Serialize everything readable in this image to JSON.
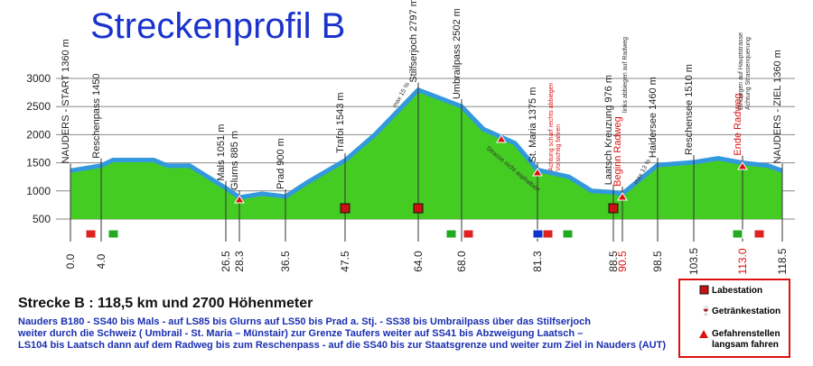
{
  "chart_data": {
    "type": "area",
    "title": "Streckenprofil B",
    "categories": [
      "0.0",
      "4.0",
      null,
      null,
      null,
      null,
      "26.5",
      "28.3",
      null,
      "36.5",
      null,
      "47.5",
      null,
      "64.0",
      "68.0",
      null,
      null,
      "81.3",
      null,
      null,
      "88.5",
      "90.5",
      "98.5",
      "103.5",
      null,
      "113.0",
      null,
      "118.5"
    ],
    "values": [
      1360,
      1450,
      1550,
      1550,
      1450,
      1450,
      1051,
      885,
      950,
      900,
      1150,
      1543,
      2000,
      2797,
      2502,
      2100,
      1850,
      1375,
      1250,
      1000,
      976,
      950,
      1460,
      1510,
      1580,
      1500,
      1450,
      1360
    ],
    "place_labels": [
      "NAUDERS - START 1360 m",
      "Reschenpass 1450",
      null,
      null,
      null,
      null,
      "Mals 1051 m",
      "Glurns 885 m",
      null,
      "Prad 900 m",
      null,
      "Trafoi 1543 m",
      null,
      "Stilfserjoch 2797 m",
      "Umbrailpass 2502 m",
      null,
      null,
      "St. Maria 1375 m",
      null,
      null,
      "Laatsch Kreuzung 976 m",
      "Beginn Radweg",
      "Haidersee 1460 m",
      "Reschensee 1510 m",
      null,
      "Ende Radweg",
      null,
      "NAUDERS - ZIEL 1360 m"
    ],
    "fill_color": "#44cc22",
    "line_color": "#3399dd",
    "ylim": [
      500,
      3000
    ],
    "yticks": [
      500,
      1000,
      1500,
      2000,
      2500,
      3000
    ],
    "grid": true,
    "annotations": [
      "max 15 %",
      "Strasse nicht asphaltiert",
      "Achtung scharf rechts abbiegen",
      "Vorsichtig fahren",
      "links abbiegen auf Radweg",
      "Einbiegen auf Hauptstrasse",
      "Achtung Strassenquerung",
      "max 13 %"
    ]
  },
  "route": {
    "heading": "Strecke B :  118,5 km und 2700 Höhenmeter",
    "lines": [
      "Nauders B180 - SS40 bis Mals  - auf LS85 bis Glurns  auf LS50 bis Prad a. Stj. - SS38 bis Umbrailpass über das Stilfserjoch",
      "weiter durch die Schweiz ( Umbrail - St. Maria – Münstair) zur Grenze Taufers weiter auf SS41 bis Abzweigung Laatsch –",
      "LS104 bis Laatsch dann auf dem Radweg bis zum Reschenpass - auf die SS40 bis zur Staatsgrenze  und weiter zum Ziel in Nauders (AUT)"
    ]
  },
  "legend": {
    "items": [
      "Labestation",
      "Getränkestation",
      "Gefahrenstellen",
      "langsam fahren"
    ]
  }
}
